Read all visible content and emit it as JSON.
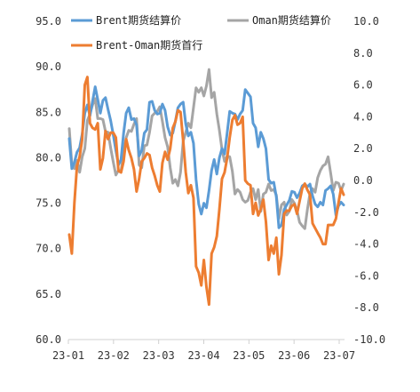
{
  "chart_data": {
    "type": "line",
    "title": "",
    "xlabel": "",
    "ylabel_left": "",
    "ylabel_right": "",
    "x_tick_labels": [
      "23-01",
      "23-02",
      "23-03",
      "23-04",
      "23-05",
      "23-06",
      "23-07"
    ],
    "y_left": {
      "min": 60,
      "max": 95,
      "step": 5,
      "tick_labels": [
        "60.0",
        "65.0",
        "70.0",
        "75.0",
        "80.0",
        "85.0",
        "90.0",
        "95.0"
      ]
    },
    "y_right": {
      "min": -10,
      "max": 10,
      "step": 2,
      "tick_labels": [
        "-10.0",
        "-8.0",
        "-6.0",
        "-4.0",
        "-2.0",
        "0.0",
        "2.0",
        "4.0",
        "6.0",
        "8.0",
        "10.0"
      ]
    },
    "legend_placement": "top",
    "grid": false,
    "series": [
      {
        "name": "Brent期货结算价",
        "axis": "left",
        "color": "#5b9bd5",
        "values": [
          82.1,
          78.8,
          79.5,
          80.6,
          81.1,
          82.6,
          84.9,
          85.8,
          84.6,
          86.2,
          87.8,
          86.4,
          84.9,
          86.3,
          86.6,
          85.3,
          84.1,
          82.5,
          80.8,
          79.2,
          79.8,
          82.7,
          84.9,
          85.5,
          84.2,
          84.3,
          83.6,
          80.2,
          80.8,
          82.7,
          83.1,
          86.1,
          86.2,
          85.2,
          84.8,
          84.9,
          85.9,
          85.2,
          83.4,
          82.5,
          82.7,
          84.0,
          85.5,
          85.9,
          86.1,
          83.7,
          82.4,
          82.8,
          81.6,
          77.6,
          74.9,
          73.8,
          75.0,
          74.5,
          76.4,
          78.6,
          79.8,
          78.2,
          80.0,
          81.0,
          80.4,
          82.7,
          85.1,
          84.9,
          84.8,
          84.2,
          84.8,
          85.2,
          87.5,
          87.1,
          86.7,
          83.8,
          83.3,
          81.2,
          82.8,
          82.1,
          81.0,
          77.6,
          77.2,
          77.3,
          75.7,
          72.3,
          72.6,
          74.3,
          74.8,
          75.3,
          76.3,
          76.2,
          75.6,
          76.1,
          76.9,
          77.1,
          76.8,
          77.1,
          75.8,
          74.9,
          74.6,
          75.1,
          74.8,
          76.4,
          76.6,
          76.9,
          76.0,
          73.7,
          74.7,
          75.1,
          74.8
        ],
        "values_note": ""
      },
      {
        "name": "Oman期货结算价",
        "axis": "left",
        "color": "#a5a5a5",
        "values": [
          83.2,
          79.3,
          78.8,
          79.7,
          78.4,
          80.1,
          81.0,
          84.1,
          84.8,
          85.8,
          86.5,
          84.3,
          84.3,
          84.2,
          82.9,
          82.8,
          81.1,
          79.5,
          78.1,
          78.6,
          78.5,
          80.6,
          82.2,
          83.0,
          82.9,
          83.7,
          84.3,
          79.2,
          78.9,
          81.3,
          81.4,
          82.8,
          84.6,
          84.9,
          85.1,
          85.6,
          84.0,
          82.2,
          81.2,
          78.9,
          77.2,
          77.6,
          76.9,
          78.4,
          81.8,
          82.8,
          83.8,
          83.3,
          85.5,
          87.7,
          87.2,
          87.7,
          86.8,
          87.9,
          89.7,
          86.6,
          87.2,
          84.8,
          83.0,
          80.9,
          79.6,
          80.2,
          80.1,
          78.5,
          76.0,
          76.5,
          76.2,
          75.4,
          75.1,
          75.3,
          76.2,
          76.6,
          75.4,
          76.5,
          74.1,
          76.0,
          76.2,
          77.1,
          76.4,
          76.5,
          75.9,
          73.3,
          74.8,
          75.1,
          73.7,
          74.1,
          75.4,
          75.0,
          74.2,
          72.9,
          72.5,
          72.2,
          74.3,
          76.1,
          76.6,
          76.2,
          77.8,
          78.6,
          79.1,
          79.3,
          80.1,
          78.3,
          76.4,
          77.3,
          77.2,
          76.4,
          77.1
        ]
      },
      {
        "name": "Brent-Oman期货首行",
        "axis": "right",
        "color": "#ed7d31",
        "values": [
          -3.4,
          -4.6,
          -1.4,
          0.9,
          1.5,
          2.6,
          6.0,
          6.5,
          3.6,
          3.3,
          3.2,
          3.6,
          0.7,
          1.4,
          3.1,
          2.6,
          3.0,
          3.0,
          2.7,
          0.6,
          0.5,
          1.2,
          2.6,
          1.9,
          1.4,
          0.7,
          -0.7,
          0.1,
          1.2,
          1.4,
          1.7,
          1.6,
          0.8,
          0.3,
          -0.3,
          -0.7,
          1.1,
          1.8,
          1.3,
          2.0,
          3.3,
          3.7,
          4.4,
          4.3,
          2.5,
          0.5,
          -0.8,
          -0.3,
          -1.1,
          -5.4,
          -5.8,
          -6.6,
          -5.0,
          -6.7,
          -7.8,
          -4.6,
          -4.2,
          -3.5,
          -1.8,
          0.1,
          0.5,
          1.4,
          2.7,
          3.8,
          4.1,
          3.5,
          3.6,
          4.0,
          0.0,
          -0.2,
          -0.3,
          -2.1,
          -1.4,
          -2.2,
          -1.8,
          -1.2,
          -2.6,
          -5.0,
          -4.1,
          -4.6,
          -3.6,
          -5.9,
          -4.7,
          -2.1,
          -1.9,
          -1.9,
          -1.6,
          -1.5,
          -2.1,
          -1.3,
          -0.5,
          -0.2,
          -0.6,
          -0.9,
          -2.7,
          -3.0,
          -3.3,
          -3.6,
          -4.0,
          -4.0,
          -2.8,
          -2.8,
          -2.8,
          -2.4,
          -1.4,
          -0.5,
          -0.9
        ],
        "values_note": ""
      }
    ]
  }
}
